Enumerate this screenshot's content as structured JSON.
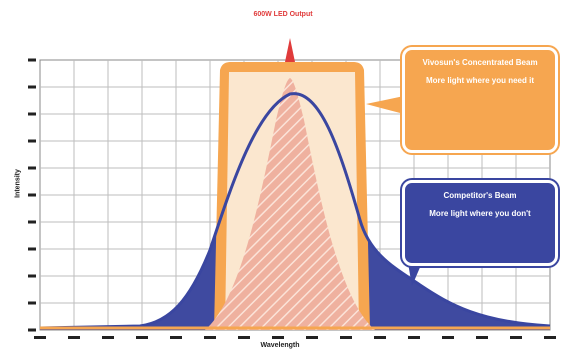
{
  "figure": {
    "top_label": "600W LED Output",
    "x_axis_label": "Wavelength",
    "y_axis_label": "Intensity"
  },
  "callouts": {
    "ours": {
      "title": "Vivosun's Concentrated Beam",
      "subtitle": "More light where you need it"
    },
    "competitor": {
      "title": "Competitor's Beam",
      "subtitle": "More light where you don't"
    }
  },
  "colors": {
    "grid": "#bdbdbd",
    "ours_fill": "#f6a650",
    "ours_light": "#fbe7cf",
    "competitor": "#3a46a0",
    "competitor_fill": "#3f4aa0",
    "hatch_red": "#e8806c",
    "peak_red": "#e03b3b"
  }
}
